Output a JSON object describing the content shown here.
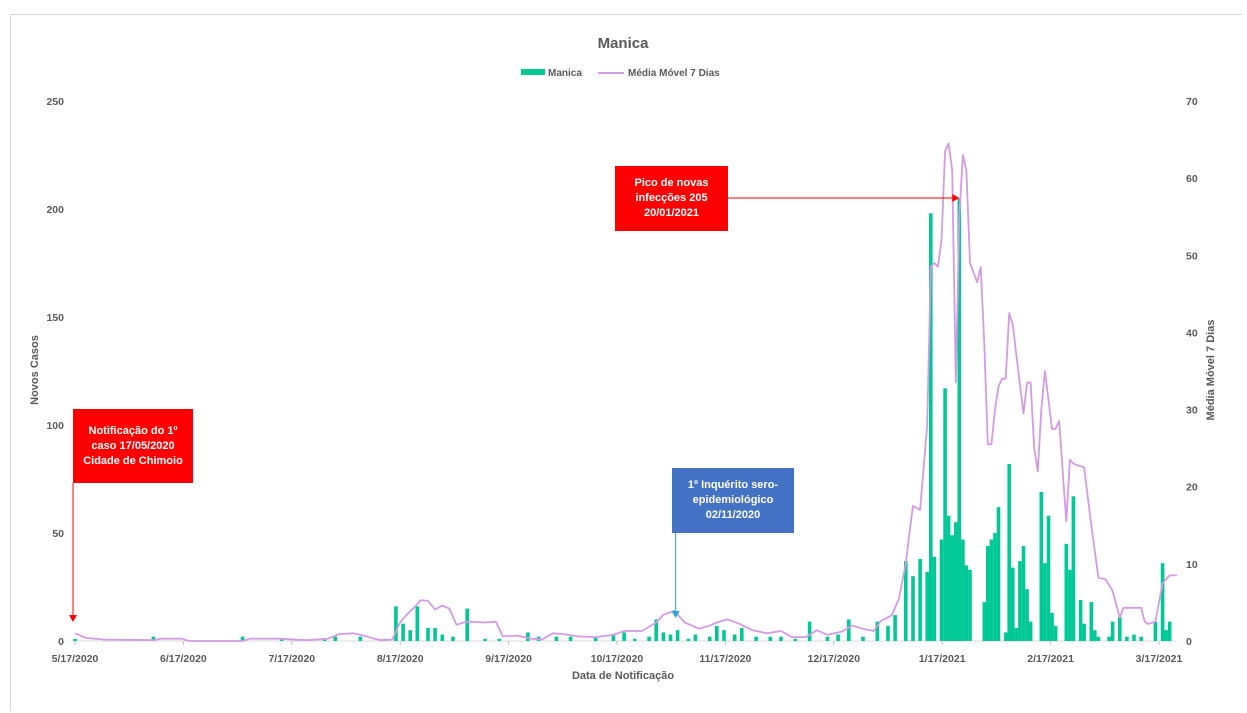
{
  "chart_data": {
    "type": "bar+line",
    "title": "Manica",
    "xlabel": "Data de Notificação",
    "ylabel": "Novos Casos",
    "y2label": "Média Móvel 7 Dias",
    "ylim": [
      0,
      250
    ],
    "y2lim": [
      0,
      70
    ],
    "yticks": [
      "0",
      "50",
      "100",
      "150",
      "200",
      "250"
    ],
    "y2ticks": [
      "0",
      "10",
      "20",
      "30",
      "40",
      "50",
      "60",
      "70"
    ],
    "xticks": [
      "5/17/2020",
      "6/17/2020",
      "7/17/2020",
      "8/17/2020",
      "9/17/2020",
      "10/17/2020",
      "11/17/2020",
      "12/17/2020",
      "1/17/2021",
      "2/17/2021",
      "3/17/2021"
    ],
    "legend": {
      "position": "top",
      "items": [
        "Manica",
        "Média Móvel 7 Dias"
      ]
    },
    "colors": {
      "bars": "#00c896",
      "line": "#d39be3",
      "annotation_red": "#ff0000",
      "annotation_blue": "#4472c4"
    },
    "series": [
      {
        "name": "Manica",
        "kind": "bar",
        "axis": "left",
        "points": [
          [
            "2020-05-17",
            1
          ],
          [
            "2020-06-08",
            2
          ],
          [
            "2020-07-03",
            2
          ],
          [
            "2020-07-14",
            1
          ],
          [
            "2020-07-26",
            1
          ],
          [
            "2020-07-29",
            2
          ],
          [
            "2020-08-05",
            2
          ],
          [
            "2020-08-12",
            1
          ],
          [
            "2020-08-15",
            16
          ],
          [
            "2020-08-17",
            8
          ],
          [
            "2020-08-19",
            5
          ],
          [
            "2020-08-21",
            16
          ],
          [
            "2020-08-24",
            6
          ],
          [
            "2020-08-26",
            6
          ],
          [
            "2020-08-28",
            3
          ],
          [
            "2020-08-31",
            2
          ],
          [
            "2020-09-04",
            15
          ],
          [
            "2020-09-09",
            1
          ],
          [
            "2020-09-13",
            1
          ],
          [
            "2020-09-21",
            4
          ],
          [
            "2020-09-24",
            2
          ],
          [
            "2020-09-29",
            2
          ],
          [
            "2020-10-03",
            2
          ],
          [
            "2020-10-10",
            2
          ],
          [
            "2020-10-15",
            3
          ],
          [
            "2020-10-18",
            4
          ],
          [
            "2020-10-21",
            1
          ],
          [
            "2020-10-25",
            2
          ],
          [
            "2020-10-27",
            10
          ],
          [
            "2020-10-29",
            4
          ],
          [
            "2020-10-31",
            3
          ],
          [
            "2020-11-02",
            5
          ],
          [
            "2020-11-05",
            1
          ],
          [
            "2020-11-07",
            3
          ],
          [
            "2020-11-11",
            2
          ],
          [
            "2020-11-13",
            7
          ],
          [
            "2020-11-15",
            5
          ],
          [
            "2020-11-18",
            3
          ],
          [
            "2020-11-20",
            6
          ],
          [
            "2020-11-24",
            2
          ],
          [
            "2020-11-28",
            2
          ],
          [
            "2020-12-01",
            2
          ],
          [
            "2020-12-05",
            1
          ],
          [
            "2020-12-09",
            9
          ],
          [
            "2020-12-14",
            2
          ],
          [
            "2020-12-17",
            3
          ],
          [
            "2020-12-20",
            10
          ],
          [
            "2020-12-24",
            2
          ],
          [
            "2020-12-28",
            9
          ],
          [
            "2020-12-31",
            7
          ],
          [
            "2021-01-02",
            12
          ],
          [
            "2021-01-05",
            37
          ],
          [
            "2021-01-07",
            30
          ],
          [
            "2021-01-09",
            38
          ],
          [
            "2021-01-11",
            32
          ],
          [
            "2021-01-12",
            198
          ],
          [
            "2021-01-13",
            39
          ],
          [
            "2021-01-15",
            47
          ],
          [
            "2021-01-16",
            117
          ],
          [
            "2021-01-17",
            58
          ],
          [
            "2021-01-18",
            49
          ],
          [
            "2021-01-19",
            55
          ],
          [
            "2021-01-20",
            205
          ],
          [
            "2021-01-21",
            47
          ],
          [
            "2021-01-22",
            35
          ],
          [
            "2021-01-23",
            33
          ],
          [
            "2021-01-27",
            18
          ],
          [
            "2021-01-28",
            44
          ],
          [
            "2021-01-29",
            47
          ],
          [
            "2021-01-30",
            50
          ],
          [
            "2021-01-31",
            62
          ],
          [
            "2021-02-02",
            4
          ],
          [
            "2021-02-03",
            82
          ],
          [
            "2021-02-04",
            34
          ],
          [
            "2021-02-05",
            6
          ],
          [
            "2021-02-06",
            37
          ],
          [
            "2021-02-07",
            44
          ],
          [
            "2021-02-08",
            24
          ],
          [
            "2021-02-09",
            9
          ],
          [
            "2021-02-12",
            69
          ],
          [
            "2021-02-13",
            36
          ],
          [
            "2021-02-14",
            58
          ],
          [
            "2021-02-15",
            13
          ],
          [
            "2021-02-16",
            7
          ],
          [
            "2021-02-19",
            45
          ],
          [
            "2021-02-20",
            33
          ],
          [
            "2021-02-21",
            67
          ],
          [
            "2021-02-23",
            19
          ],
          [
            "2021-02-24",
            8
          ],
          [
            "2021-02-26",
            18
          ],
          [
            "2021-02-27",
            5
          ],
          [
            "2021-02-28",
            2
          ],
          [
            "2021-03-03",
            2
          ],
          [
            "2021-03-04",
            9
          ],
          [
            "2021-03-06",
            11
          ],
          [
            "2021-03-08",
            2
          ],
          [
            "2021-03-10",
            3
          ],
          [
            "2021-03-12",
            2
          ],
          [
            "2021-03-16",
            9
          ],
          [
            "2021-03-18",
            36
          ],
          [
            "2021-03-19",
            5
          ],
          [
            "2021-03-20",
            9
          ]
        ]
      },
      {
        "name": "Média Móvel 7 Dias",
        "kind": "line",
        "axis": "right",
        "points": [
          [
            "2020-05-17",
            1.0
          ],
          [
            "2020-05-20",
            0.4
          ],
          [
            "2020-05-25",
            0.2
          ],
          [
            "2020-06-08",
            0.1
          ],
          [
            "2020-06-10",
            0.3
          ],
          [
            "2020-06-16",
            0.3
          ],
          [
            "2020-06-18",
            0.0
          ],
          [
            "2020-07-03",
            0.0
          ],
          [
            "2020-07-05",
            0.3
          ],
          [
            "2020-07-13",
            0.3
          ],
          [
            "2020-07-21",
            0.1
          ],
          [
            "2020-07-27",
            0.3
          ],
          [
            "2020-07-30",
            0.9
          ],
          [
            "2020-08-03",
            1.0
          ],
          [
            "2020-08-06",
            0.7
          ],
          [
            "2020-08-09",
            0.3
          ],
          [
            "2020-08-11",
            0.1
          ],
          [
            "2020-08-14",
            0.2
          ],
          [
            "2020-08-16",
            2.3
          ],
          [
            "2020-08-18",
            3.4
          ],
          [
            "2020-08-20",
            4.3
          ],
          [
            "2020-08-22",
            5.3
          ],
          [
            "2020-08-24",
            5.2
          ],
          [
            "2020-08-26",
            4.1
          ],
          [
            "2020-08-28",
            4.6
          ],
          [
            "2020-08-30",
            4.2
          ],
          [
            "2020-09-01",
            2.1
          ],
          [
            "2020-09-03",
            2.4
          ],
          [
            "2020-09-05",
            2.5
          ],
          [
            "2020-09-09",
            2.4
          ],
          [
            "2020-09-12",
            2.5
          ],
          [
            "2020-09-14",
            0.6
          ],
          [
            "2020-09-18",
            0.7
          ],
          [
            "2020-09-22",
            0.3
          ],
          [
            "2020-09-25",
            0.2
          ],
          [
            "2020-09-28",
            1.0
          ],
          [
            "2020-10-01",
            0.9
          ],
          [
            "2020-10-05",
            0.6
          ],
          [
            "2020-10-10",
            0.5
          ],
          [
            "2020-10-15",
            0.8
          ],
          [
            "2020-10-18",
            1.3
          ],
          [
            "2020-10-23",
            1.3
          ],
          [
            "2020-10-27",
            2.4
          ],
          [
            "2020-10-29",
            3.4
          ],
          [
            "2020-11-01",
            3.9
          ],
          [
            "2020-11-04",
            2.4
          ],
          [
            "2020-11-08",
            1.6
          ],
          [
            "2020-11-11",
            2.0
          ],
          [
            "2020-11-13",
            2.4
          ],
          [
            "2020-11-16",
            2.8
          ],
          [
            "2020-11-19",
            2.3
          ],
          [
            "2020-11-23",
            1.4
          ],
          [
            "2020-11-27",
            1.0
          ],
          [
            "2020-12-01",
            1.3
          ],
          [
            "2020-12-04",
            0.5
          ],
          [
            "2020-12-08",
            0.5
          ],
          [
            "2020-12-11",
            1.4
          ],
          [
            "2020-12-14",
            0.8
          ],
          [
            "2020-12-18",
            1.2
          ],
          [
            "2020-12-21",
            2.0
          ],
          [
            "2020-12-24",
            1.6
          ],
          [
            "2020-12-27",
            1.3
          ],
          [
            "2020-12-29",
            2.6
          ],
          [
            "2021-01-01",
            3.3
          ],
          [
            "2021-01-03",
            5.4
          ],
          [
            "2021-01-05",
            10.0
          ],
          [
            "2021-01-06",
            14.0
          ],
          [
            "2021-01-07",
            17.5
          ],
          [
            "2021-01-09",
            17.0
          ],
          [
            "2021-01-11",
            28.0
          ],
          [
            "2021-01-12",
            48.5
          ],
          [
            "2021-01-13",
            49.0
          ],
          [
            "2021-01-14",
            48.5
          ],
          [
            "2021-01-15",
            52.0
          ],
          [
            "2021-01-16",
            63.5
          ],
          [
            "2021-01-17",
            64.5
          ],
          [
            "2021-01-18",
            61.0
          ],
          [
            "2021-01-19",
            33.5
          ],
          [
            "2021-01-20",
            55.0
          ],
          [
            "2021-01-21",
            63.0
          ],
          [
            "2021-01-22",
            61.0
          ],
          [
            "2021-01-23",
            49.0
          ],
          [
            "2021-01-25",
            46.5
          ],
          [
            "2021-01-26",
            48.5
          ],
          [
            "2021-01-27",
            38.5
          ],
          [
            "2021-01-28",
            25.5
          ],
          [
            "2021-01-29",
            25.5
          ],
          [
            "2021-01-30",
            30.0
          ],
          [
            "2021-01-31",
            33.0
          ],
          [
            "2021-02-01",
            34.0
          ],
          [
            "2021-02-02",
            34.0
          ],
          [
            "2021-02-03",
            42.5
          ],
          [
            "2021-02-04",
            41.0
          ],
          [
            "2021-02-05",
            37.0
          ],
          [
            "2021-02-07",
            29.5
          ],
          [
            "2021-02-08",
            33.5
          ],
          [
            "2021-02-09",
            33.5
          ],
          [
            "2021-02-10",
            25.0
          ],
          [
            "2021-02-11",
            22.0
          ],
          [
            "2021-02-12",
            30.0
          ],
          [
            "2021-02-13",
            35.0
          ],
          [
            "2021-02-15",
            27.5
          ],
          [
            "2021-02-16",
            27.5
          ],
          [
            "2021-02-17",
            28.5
          ],
          [
            "2021-02-18",
            22.0
          ],
          [
            "2021-02-19",
            15.5
          ],
          [
            "2021-02-20",
            23.5
          ],
          [
            "2021-02-21",
            23.0
          ],
          [
            "2021-02-22",
            22.8
          ],
          [
            "2021-02-24",
            22.5
          ],
          [
            "2021-02-26",
            15.0
          ],
          [
            "2021-02-28",
            8.2
          ],
          [
            "2021-03-02",
            8.0
          ],
          [
            "2021-03-04",
            6.5
          ],
          [
            "2021-03-06",
            3.0
          ],
          [
            "2021-03-07",
            4.3
          ],
          [
            "2021-03-12",
            4.3
          ],
          [
            "2021-03-13",
            2.5
          ],
          [
            "2021-03-14",
            2.2
          ],
          [
            "2021-03-16",
            2.5
          ],
          [
            "2021-03-18",
            7.5
          ],
          [
            "2021-03-20",
            8.5
          ],
          [
            "2021-03-22",
            8.5
          ]
        ]
      }
    ],
    "annotations": [
      {
        "text": [
          "Notificação do 1º",
          "caso 17/05/2020",
          "Cidade de Chimoio"
        ],
        "color": "red",
        "target_date": "2020-05-17",
        "target_value": 0
      },
      {
        "text": [
          "1º Inquérito sero-",
          "epidemiológico",
          "02/11/2020"
        ],
        "color": "blue",
        "target_date": "2020-11-02",
        "target_value": 0
      },
      {
        "text": [
          "Pico de novas",
          "infecções 205",
          "20/01/2021"
        ],
        "color": "red",
        "target_date": "2021-01-20",
        "target_value": 205
      }
    ]
  }
}
